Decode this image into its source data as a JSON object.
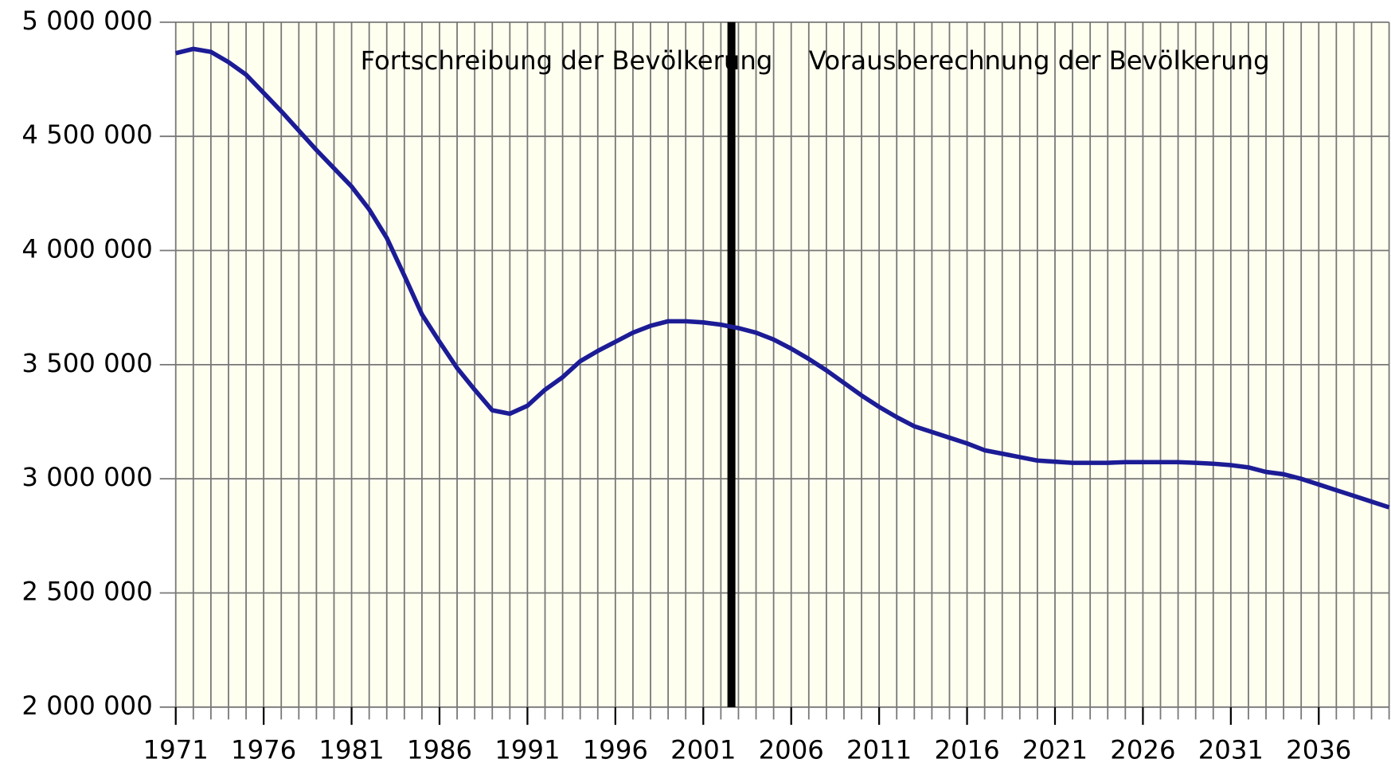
{
  "chart_data": {
    "type": "line",
    "x": [
      1971,
      1972,
      1973,
      1974,
      1975,
      1976,
      1977,
      1978,
      1979,
      1980,
      1981,
      1982,
      1983,
      1984,
      1985,
      1986,
      1987,
      1988,
      1989,
      1990,
      1991,
      1992,
      1993,
      1994,
      1995,
      1996,
      1997,
      1998,
      1999,
      2000,
      2001,
      2002,
      2003,
      2004,
      2005,
      2006,
      2007,
      2008,
      2009,
      2010,
      2011,
      2012,
      2013,
      2014,
      2015,
      2016,
      2017,
      2018,
      2019,
      2020,
      2021,
      2022,
      2023,
      2024,
      2025,
      2026,
      2027,
      2028,
      2029,
      2030,
      2031,
      2032,
      2033,
      2034,
      2035,
      2036,
      2037,
      2038,
      2039,
      2040
    ],
    "series": [
      {
        "color": "#1c1c96",
        "values": [
          4864000,
          4883000,
          4870000,
          4825000,
          4770000,
          4690000,
          4610000,
          4525000,
          4440000,
          4360000,
          4280000,
          4180000,
          4055000,
          3890000,
          3720000,
          3600000,
          3485000,
          3390000,
          3300000,
          3285000,
          3320000,
          3390000,
          3445000,
          3515000,
          3560000,
          3600000,
          3640000,
          3670000,
          3690000,
          3690000,
          3685000,
          3675000,
          3660000,
          3640000,
          3610000,
          3570000,
          3525000,
          3475000,
          3420000,
          3365000,
          3315000,
          3270000,
          3230000,
          3205000,
          3180000,
          3155000,
          3125000,
          3110000,
          3095000,
          3080000,
          3075000,
          3070000,
          3070000,
          3070000,
          3073000,
          3073000,
          3073000,
          3073000,
          3070000,
          3066000,
          3060000,
          3050000,
          3030000,
          3020000,
          3000000,
          2975000,
          2950000,
          2925000,
          2900000,
          2875000
        ]
      }
    ],
    "xlim": [
      1971,
      2040
    ],
    "xticks": [
      1971,
      1976,
      1981,
      1986,
      1991,
      1996,
      2001,
      2006,
      2011,
      2016,
      2021,
      2026,
      2031,
      2036
    ],
    "ylim": [
      2000000,
      5000000
    ],
    "yticks": [
      {
        "value": 2000000,
        "label": "2 000 000"
      },
      {
        "value": 2500000,
        "label": "2 500 000"
      },
      {
        "value": 3000000,
        "label": "3 000 000"
      },
      {
        "value": 3500000,
        "label": "3 500 000"
      },
      {
        "value": 4000000,
        "label": "4 000 000"
      },
      {
        "value": 4500000,
        "label": "4 500 000"
      },
      {
        "value": 5000000,
        "label": "5 000 000"
      }
    ],
    "grid": true,
    "divider_x": 2002.6,
    "annotations": [
      {
        "text": "Fortschreibung der Bevölkerung",
        "x": 1981.5
      },
      {
        "text": "Vorausberechnung der Bevölkerung",
        "x": 2007
      }
    ]
  }
}
